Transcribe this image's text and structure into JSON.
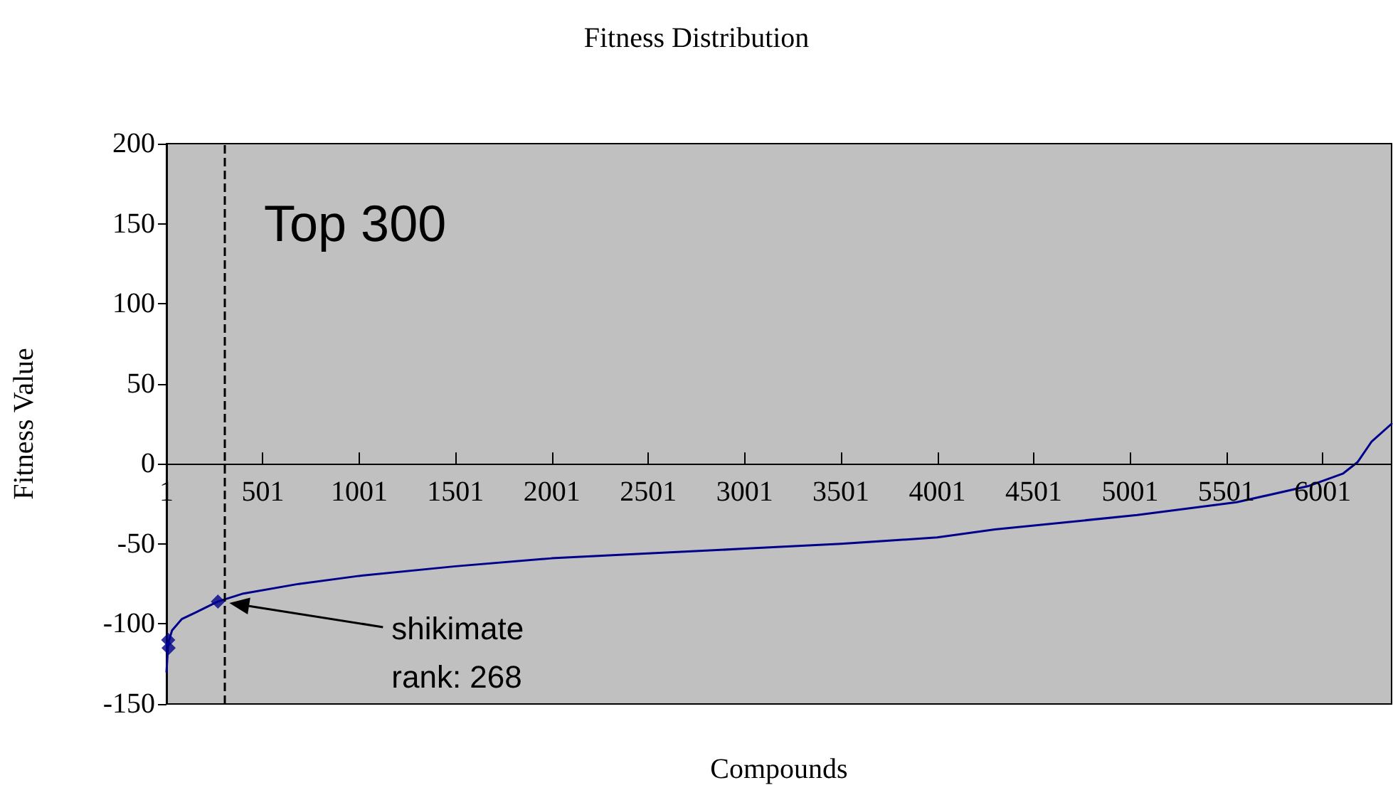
{
  "chart_data": {
    "type": "line",
    "title": "Fitness Distribution",
    "xlabel": "Compounds",
    "ylabel": "Fitness Value",
    "xlim": [
      1,
      6358
    ],
    "xticks": [
      1,
      501,
      1001,
      1501,
      2001,
      2501,
      3001,
      3501,
      4001,
      4501,
      5001,
      5501,
      6001
    ],
    "ylim": [
      -150,
      200
    ],
    "yticks": [
      -150,
      -100,
      -50,
      0,
      50,
      100,
      150,
      200
    ],
    "grid": false,
    "series": [
      {
        "color": "#00008b",
        "marker": "none",
        "x": [
          1,
          10,
          30,
          80,
          150,
          268,
          400,
          687,
          1000,
          1500,
          2000,
          2500,
          3000,
          3500,
          4000,
          4300,
          5038,
          5554,
          5923,
          6107,
          6181,
          6255,
          6358
        ],
        "values": [
          -130,
          -112,
          -104,
          -97,
          -93,
          -86,
          -81,
          -75,
          -70,
          -64,
          -59,
          -56,
          -53,
          -50,
          -46,
          -41,
          -32,
          -24,
          -14,
          -6,
          1,
          14,
          25
        ]
      },
      {
        "type": "scatter",
        "color": "#00008b",
        "marker": "diamond",
        "x": [
          10,
          12,
          268
        ],
        "values": [
          -110,
          -115,
          -86
        ]
      }
    ],
    "ref_lines": [
      {
        "axis": "x",
        "value": 300,
        "label": "Top 300",
        "color": "#000000",
        "line_style": "dashed"
      }
    ],
    "annotations": [
      "shikimate\nrank: 268"
    ]
  }
}
